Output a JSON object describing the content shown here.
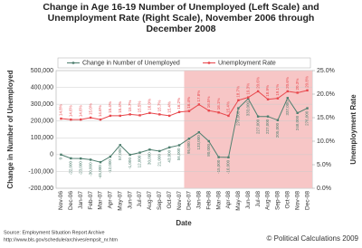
{
  "chart_data": {
    "type": "line",
    "title": "Change in Age 16-19 Number of Unemployed (Left Scale) and Unemployment Rate (Right Scale), November 2006 through December 2008",
    "xlabel": "Date",
    "ylabel": "Change in Number of Unemployed",
    "y2label": "Unemployment Rate",
    "categories": [
      "Nov-06",
      "Dec-06",
      "Jan-07",
      "Feb-07",
      "Mar-07",
      "Apr-07",
      "May-07",
      "Jun-07",
      "Jul-07",
      "Aug-07",
      "Sep-07",
      "Oct-07",
      "Nov-07",
      "Dec-07",
      "Jan-08",
      "Feb-08",
      "Mar-08",
      "Apr-08",
      "May-08",
      "Jun-08",
      "Jul-08",
      "Aug-08",
      "Sep-08",
      "Oct-08",
      "Nov-08",
      "Dec-08"
    ],
    "series": [
      {
        "name": "Change in Number of Unemployed",
        "color": "#4f7f6f",
        "axis": "y",
        "values": [
          0,
          -22000,
          -23000,
          -30000,
          -45000,
          -12000,
          57000,
          -1000,
          12000,
          30000,
          21000,
          43000,
          56000,
          95000,
          133000,
          80000,
          -15000,
          -16000,
          276000,
          333000,
          227000,
          227000,
          205000,
          337000,
          248000,
          276000
        ],
        "value_labels": [
          "0",
          "-22,000",
          "-23,000",
          "-30,000",
          "-45,000",
          "-12,000",
          "57,000",
          "-1,000",
          "12,000",
          "30,000",
          "21,000",
          "43,000",
          "56,000",
          "95,000",
          "133,000",
          "80,000",
          "-15,000",
          "-16,000",
          "276,000",
          "333,000",
          "227,000",
          "227,000",
          "205,000",
          "337,000",
          "248,000",
          "276,000"
        ]
      },
      {
        "name": "Unemployment Rate",
        "color": "#e8474c",
        "axis": "y2",
        "values": [
          14.8,
          14.6,
          14.6,
          15.0,
          14.6,
          15.4,
          15.4,
          15.7,
          15.5,
          16.0,
          15.7,
          15.4,
          16.2,
          16.4,
          17.8,
          16.5,
          16.1,
          15.4,
          18.7,
          19.3,
          20.6,
          18.9,
          19.1,
          20.6,
          20.3,
          20.8
        ],
        "value_labels": [
          "14.8%",
          "14.6%",
          "14.6%",
          "15.0%",
          "14.6%",
          "15.4%",
          "15.4%",
          "15.7%",
          "15.5%",
          "16.0%",
          "15.7%",
          "15.4%",
          "16.2%",
          "16.4%",
          "17.8%",
          "16.5%",
          "16.1%",
          "15.4%",
          "18.7%",
          "19.3%",
          "20.6%",
          "18.9%",
          "19.1%",
          "20.6%",
          "20.3%",
          "20.8%"
        ]
      }
    ],
    "ylim": [
      -200000,
      500000
    ],
    "yticks": [
      {
        "value": -200000,
        "label": "-200,000"
      },
      {
        "value": -100000,
        "label": "-100,000"
      },
      0,
      {
        "value": 100000,
        "label": "100,000"
      },
      {
        "value": 200000,
        "label": "200,000"
      },
      {
        "value": 300000,
        "label": "300,000"
      },
      {
        "value": 400000,
        "label": "400,000"
      },
      {
        "value": 500000,
        "label": "500,000"
      }
    ],
    "y2lim": [
      0,
      25
    ],
    "y2ticks": [
      {
        "value": 0,
        "label": "0.0%"
      },
      {
        "value": 5,
        "label": "5.0%"
      },
      {
        "value": 10,
        "label": "10.0%"
      },
      {
        "value": 15,
        "label": "15.0%"
      },
      {
        "value": 20,
        "label": "20.0%"
      },
      {
        "value": 25,
        "label": "25.0%"
      }
    ],
    "grid": true,
    "shaded_from": "Dec-07",
    "shade_color": "#f7c6c6",
    "legend": "top",
    "source": "Source: Employment Situation Report Archive",
    "source_url": "http://www.bls.gov/schedule/archives/empsit_nr.htm",
    "credit": "© Political Calculations 2009"
  }
}
